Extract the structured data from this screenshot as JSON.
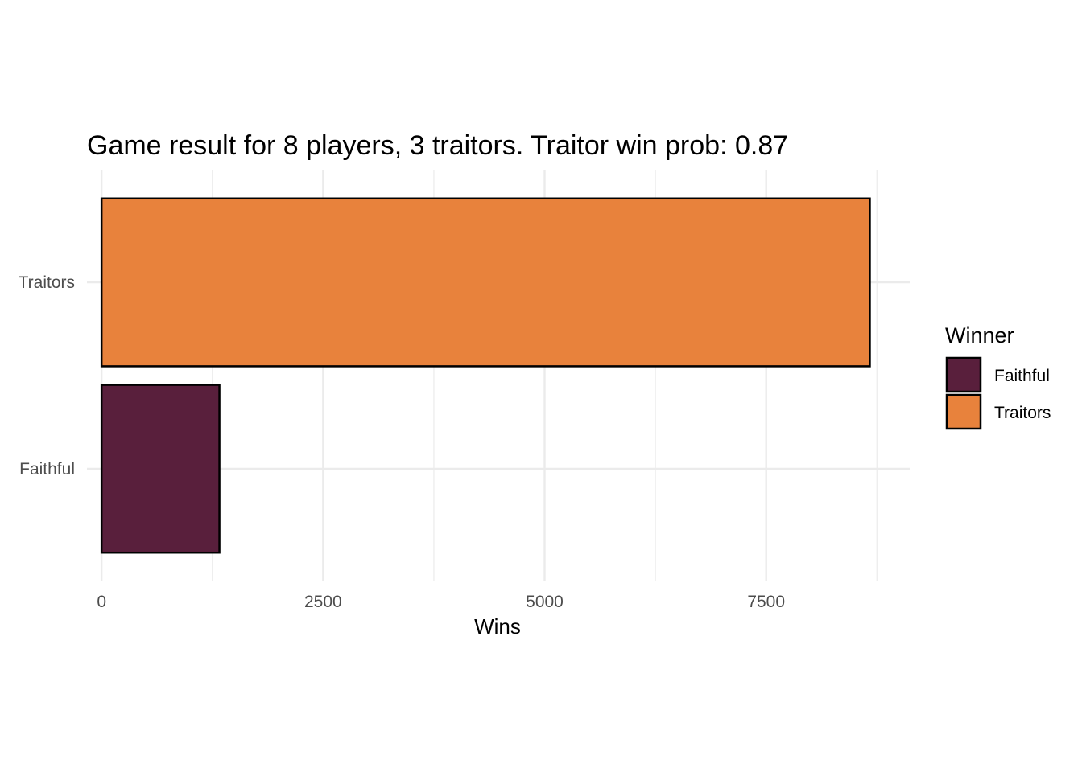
{
  "chart_data": {
    "type": "bar",
    "orientation": "horizontal",
    "title": "Game result for 8 players, 3 traitors. Traitor win prob: 0.87",
    "xlabel": "Wins",
    "ylabel": "",
    "categories": [
      "Faithful",
      "Traitors"
    ],
    "values": [
      1330,
      8670
    ],
    "colors": [
      "#591f3c",
      "#e8823c"
    ],
    "bar_outline": "#000000",
    "xlim": [
      -165,
      9120
    ],
    "x_ticks": [
      0,
      2500,
      5000,
      7500
    ],
    "x_tick_labels": [
      "0",
      "2500",
      "5000",
      "7500"
    ],
    "x_minor_ticks": [
      1250,
      3750,
      6250,
      8750
    ],
    "grid": true,
    "grid_color": "#ebebeb",
    "legend": {
      "title": "Winner",
      "position": "right",
      "entries": [
        "Faithful",
        "Traitors"
      ]
    }
  }
}
